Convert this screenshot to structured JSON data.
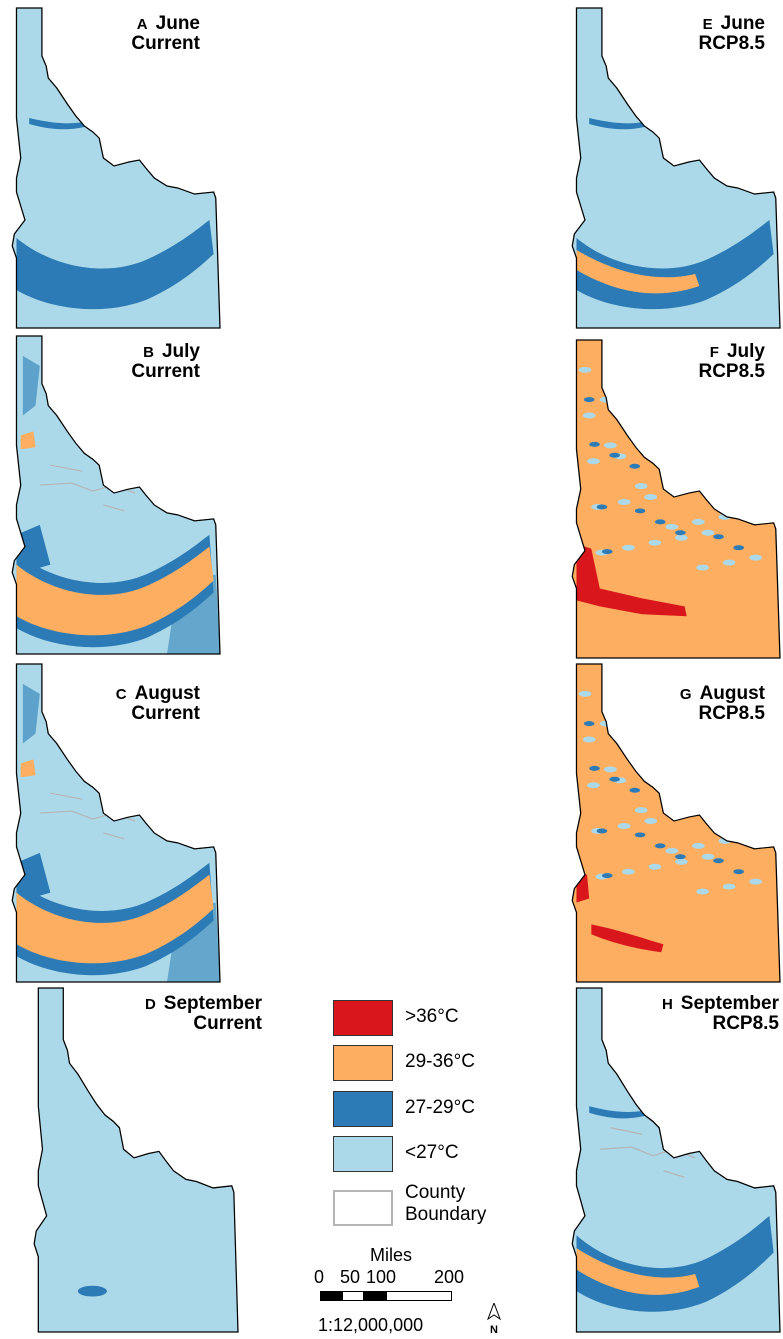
{
  "panels": [
    {
      "id": "A",
      "letter": "A",
      "month": "June",
      "scenario": "Current",
      "levels": {
        "pale": 1,
        "dark": "june",
        "orange": null,
        "red": null,
        "county": false
      }
    },
    {
      "id": "B",
      "letter": "B",
      "month": "July",
      "scenario": "Current",
      "levels": {
        "pale": 1,
        "dark": "wide",
        "orange": "band",
        "red": null,
        "county": true
      }
    },
    {
      "id": "C",
      "letter": "C",
      "month": "August",
      "scenario": "Current",
      "levels": {
        "pale": 1,
        "dark": "wide",
        "orange": "band",
        "red": null,
        "county": true
      }
    },
    {
      "id": "D",
      "letter": "D",
      "month": "September",
      "scenario": "Current",
      "levels": {
        "pale": 1,
        "dark": "spot",
        "orange": null,
        "red": null,
        "county": false
      }
    },
    {
      "id": "E",
      "letter": "E",
      "month": "June",
      "scenario": "RCP8.5",
      "levels": {
        "pale": 1,
        "dark": "june",
        "orange": "thin",
        "red": null,
        "county": false
      }
    },
    {
      "id": "F",
      "letter": "F",
      "month": "July",
      "scenario": "RCP8.5",
      "levels": {
        "pale": 1,
        "dark": "patchy",
        "orange": "full",
        "red": "west",
        "county": false
      }
    },
    {
      "id": "G",
      "letter": "G",
      "month": "August",
      "scenario": "RCP8.5",
      "levels": {
        "pale": 1,
        "dark": "patchy",
        "orange": "full",
        "red": "west-small",
        "county": false
      }
    },
    {
      "id": "H",
      "letter": "H",
      "month": "September",
      "scenario": "RCP8.5",
      "levels": {
        "pale": 1,
        "dark": "june",
        "orange": "thin",
        "red": null,
        "county": true
      }
    }
  ],
  "legend": {
    "items": [
      {
        "label": ">36°C",
        "color": "#d9161b"
      },
      {
        "label": "29-36°C",
        "color": "#fdae61"
      },
      {
        "label": "27-29°C",
        "color": "#2c7bb6"
      },
      {
        "label": "<27°C",
        "color": "#abd9e9"
      }
    ],
    "county_line1": "County",
    "county_line2": "Boundary",
    "county_color": "#b5b5b5"
  },
  "scalebar": {
    "title": "Miles",
    "ticks": [
      "0",
      "50",
      "100",
      "200"
    ],
    "ratio": "1:12,000,000"
  },
  "north_symbol": "north-arrow-icon"
}
